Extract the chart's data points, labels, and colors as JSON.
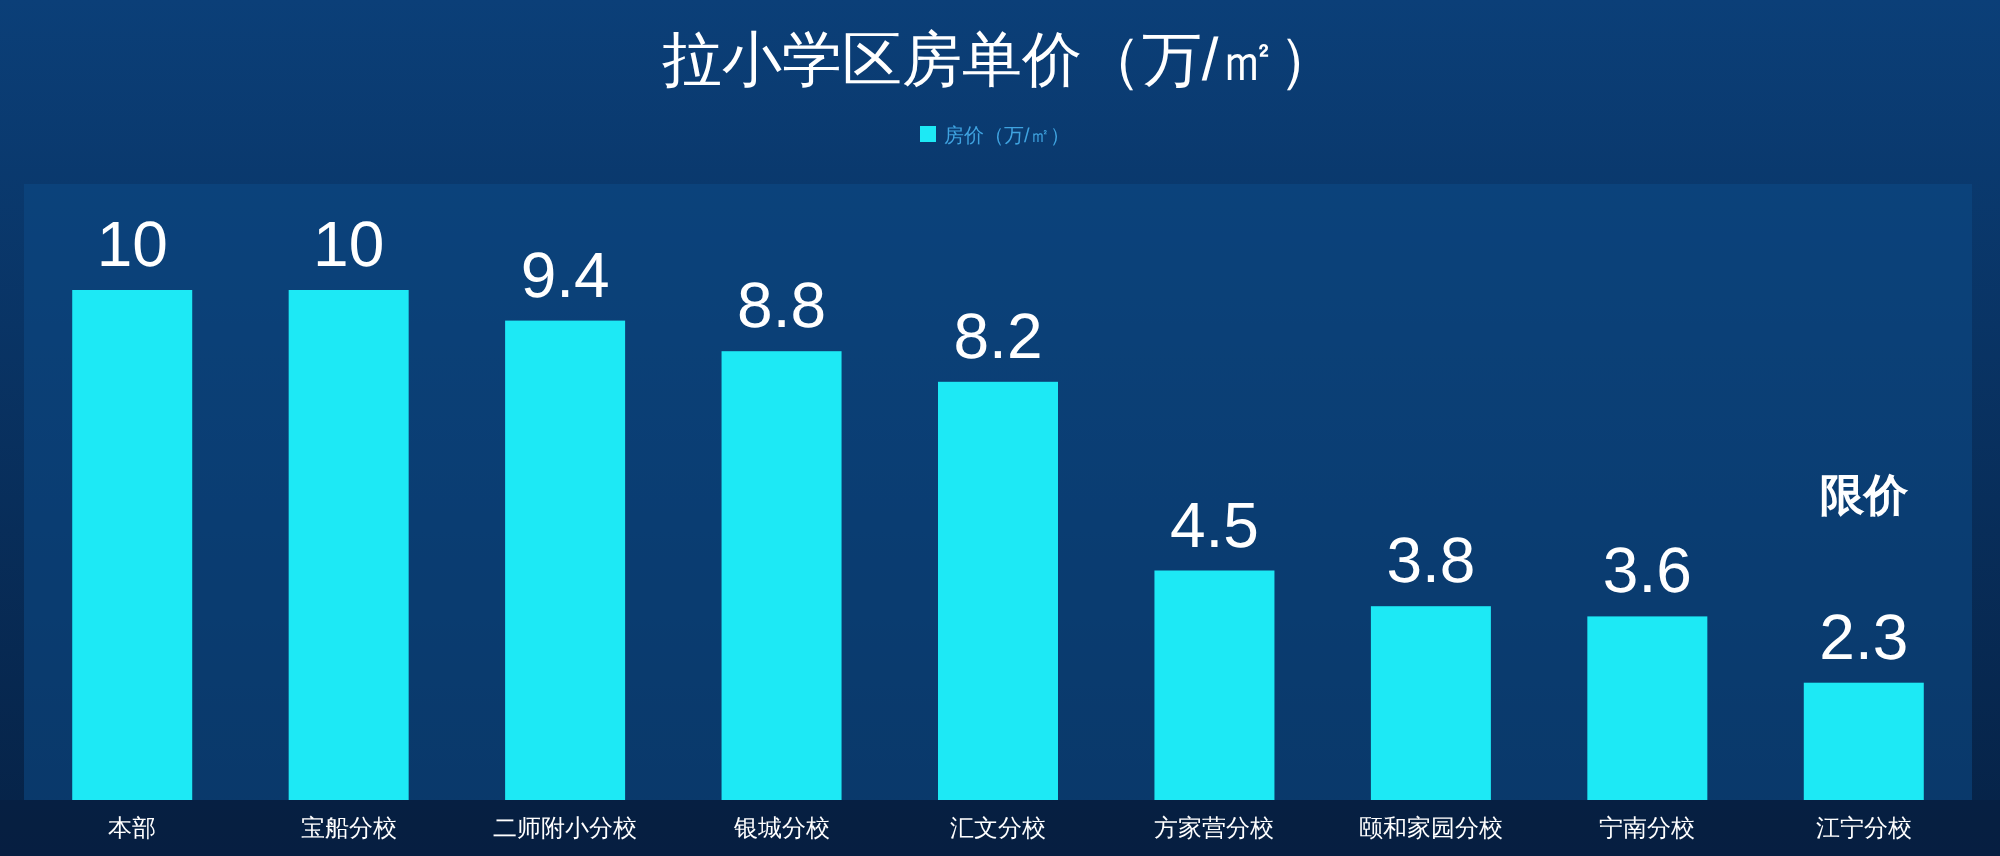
{
  "chart_data": {
    "type": "bar",
    "title": "拉小学区房单价（万/㎡）",
    "categories": [
      "本部",
      "宝船分校",
      "二师附小分校",
      "银城分校",
      "汇文分校",
      "方家营分校",
      "颐和家园分校",
      "宁南分校",
      "江宁分校"
    ],
    "series": [
      {
        "name": "房价（万/㎡）",
        "color": "#1de9f5",
        "values": [
          10,
          10,
          9.4,
          8.8,
          8.2,
          4.5,
          3.8,
          3.6,
          2.3
        ]
      }
    ],
    "data_labels": true,
    "legend": "top",
    "annotations": [
      "限价"
    ]
  }
}
